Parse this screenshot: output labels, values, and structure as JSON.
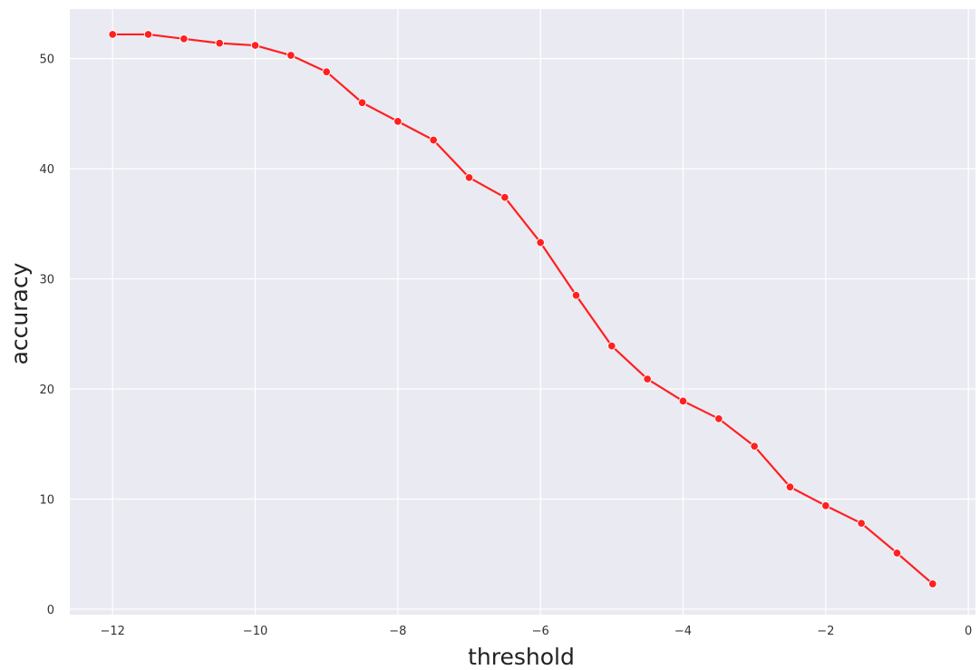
{
  "chart_data": {
    "type": "line",
    "title": "",
    "xlabel": "threshold",
    "ylabel": "accuracy",
    "xlim": [
      -12.6,
      0.1
    ],
    "ylim": [
      -0.5,
      54.5
    ],
    "xticks": [
      -12,
      -10,
      -8,
      -6,
      -4,
      -2,
      0
    ],
    "xtick_labels": [
      "−12",
      "−10",
      "−8",
      "−6",
      "−4",
      "−2",
      "0"
    ],
    "yticks": [
      0,
      10,
      20,
      30,
      40,
      50
    ],
    "ytick_labels": [
      "0",
      "10",
      "20",
      "30",
      "40",
      "50"
    ],
    "grid": true,
    "legend": "none",
    "colors": {
      "background": "#eaeaf2",
      "grid": "#ffffff",
      "series": "#ff2020"
    },
    "series": [
      {
        "x": [
          -12,
          -11.5,
          -11,
          -10.5,
          -10,
          -9.5,
          -9,
          -8.5,
          -8,
          -7.5,
          -7,
          -6.5,
          -6,
          -5.5,
          -5,
          -4.5,
          -4,
          -3.5,
          -3,
          -2.5,
          -2,
          -1.5,
          -1,
          -0.5
        ],
        "values": [
          52.2,
          52.2,
          51.8,
          51.4,
          51.2,
          50.3,
          48.8,
          46.0,
          44.3,
          42.6,
          39.2,
          37.4,
          33.3,
          28.5,
          23.9,
          20.9,
          18.9,
          17.3,
          14.8,
          11.1,
          9.4,
          7.8,
          5.1,
          2.3
        ]
      }
    ]
  }
}
